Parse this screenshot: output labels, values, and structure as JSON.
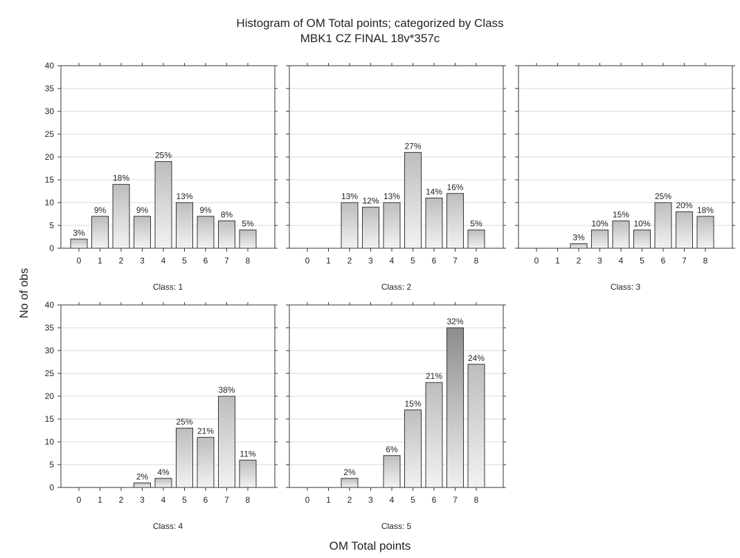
{
  "figure": {
    "title": "Histogram of OM  Total  points; categorized by Class",
    "subtitle": "MBK1  CZ  FINAL 18v*357c",
    "xlabel": "OM  Total  points",
    "ylabel": "No of obs"
  },
  "chart_data": [
    {
      "type": "bar",
      "panel_label": "Class: 1",
      "categories": [
        "0",
        "1",
        "2",
        "3",
        "4",
        "5",
        "6",
        "7",
        "8"
      ],
      "values": [
        2,
        7,
        14,
        7,
        19,
        10,
        7,
        6,
        4
      ],
      "data_labels": [
        "3%",
        "9%",
        "18%",
        "9%",
        "25%",
        "13%",
        "9%",
        "8%",
        "5%"
      ],
      "ylim": [
        0,
        40
      ],
      "yticks": [
        0,
        5,
        10,
        15,
        20,
        25,
        30,
        35,
        40
      ],
      "grid": true
    },
    {
      "type": "bar",
      "panel_label": "Class: 2",
      "categories": [
        "0",
        "1",
        "2",
        "3",
        "4",
        "5",
        "6",
        "7",
        "8"
      ],
      "values": [
        0,
        0,
        10,
        9,
        10,
        21,
        11,
        12,
        4
      ],
      "data_labels": [
        "",
        "",
        "13%",
        "12%",
        "13%",
        "27%",
        "14%",
        "16%",
        "5%"
      ],
      "ylim": [
        0,
        40
      ],
      "yticks": [
        0,
        5,
        10,
        15,
        20,
        25,
        30,
        35,
        40
      ],
      "grid": true
    },
    {
      "type": "bar",
      "panel_label": "Class: 3",
      "categories": [
        "0",
        "1",
        "2",
        "3",
        "4",
        "5",
        "6",
        "7",
        "8"
      ],
      "values": [
        0,
        0,
        1,
        4,
        6,
        4,
        10,
        8,
        7
      ],
      "data_labels": [
        "",
        "",
        "3%",
        "10%",
        "15%",
        "10%",
        "25%",
        "20%",
        "18%"
      ],
      "ylim": [
        0,
        40
      ],
      "yticks": [
        0,
        5,
        10,
        15,
        20,
        25,
        30,
        35,
        40
      ],
      "grid": true
    },
    {
      "type": "bar",
      "panel_label": "Class: 4",
      "categories": [
        "0",
        "1",
        "2",
        "3",
        "4",
        "5",
        "6",
        "7",
        "8"
      ],
      "values": [
        0,
        0,
        0,
        1,
        2,
        13,
        11,
        20,
        6
      ],
      "data_labels": [
        "",
        "",
        "",
        "2%",
        "4%",
        "25%",
        "21%",
        "38%",
        "11%"
      ],
      "ylim": [
        0,
        40
      ],
      "yticks": [
        0,
        5,
        10,
        15,
        20,
        25,
        30,
        35,
        40
      ],
      "grid": true
    },
    {
      "type": "bar",
      "panel_label": "Class: 5",
      "categories": [
        "0",
        "1",
        "2",
        "3",
        "4",
        "5",
        "6",
        "7",
        "8"
      ],
      "values": [
        0,
        0,
        2,
        0,
        7,
        17,
        23,
        35,
        27
      ],
      "data_labels": [
        "",
        "",
        "2%",
        "",
        "6%",
        "15%",
        "21%",
        "32%",
        "24%"
      ],
      "ylim": [
        0,
        40
      ],
      "yticks": [
        0,
        5,
        10,
        15,
        20,
        25,
        30,
        35,
        40
      ],
      "grid": true
    }
  ]
}
